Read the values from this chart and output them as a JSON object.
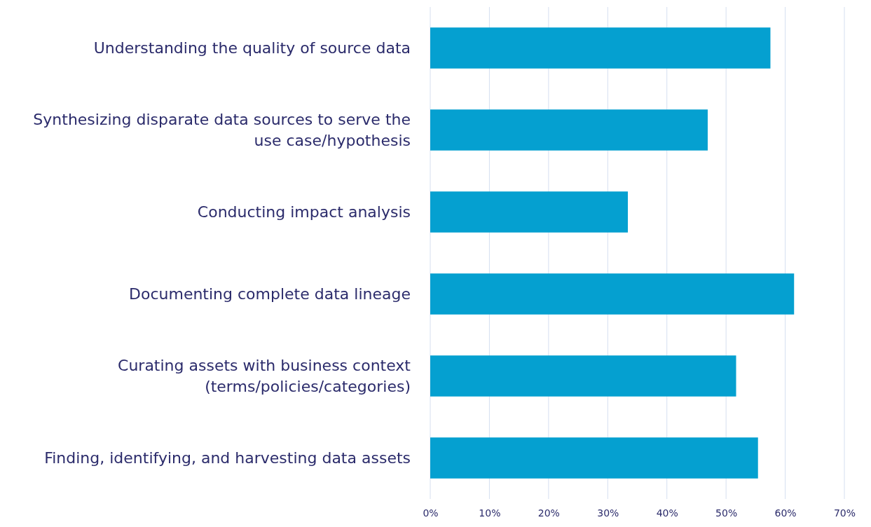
{
  "chart_data": {
    "type": "bar",
    "orientation": "horizontal",
    "categories": [
      "Understanding the quality of source data",
      "Synthesizing disparate data sources to serve the use case/hypothesis",
      "Conducting impact analysis",
      "Documenting complete data lineage",
      "Curating assets with business context (terms/policies/categories)",
      "Finding, identifying, and harvesting data assets"
    ],
    "values": [
      57.5,
      46.9,
      33.4,
      61.5,
      51.7,
      55.4
    ],
    "color": "#05a0d0",
    "xlim": [
      0,
      70
    ],
    "xticks": [
      {
        "value": 0,
        "label": "0%"
      },
      {
        "value": 10,
        "label": "10%"
      },
      {
        "value": 20,
        "label": "20%"
      },
      {
        "value": 30,
        "label": "30%"
      },
      {
        "value": 40,
        "label": "40%"
      },
      {
        "value": 50,
        "label": "50%"
      },
      {
        "value": 60,
        "label": "60%"
      },
      {
        "value": 70,
        "label": "70%"
      }
    ],
    "grid": "x"
  }
}
